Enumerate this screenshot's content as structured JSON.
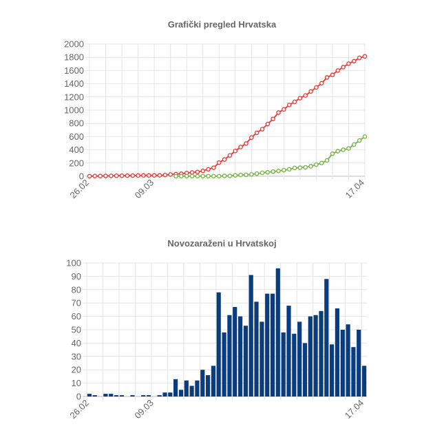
{
  "colors": {
    "confirmed": "#e8413d",
    "recovered": "#7ab648",
    "bars": "#0b3d7c",
    "grid": "#e4e4e4",
    "text": "#666666"
  },
  "chart_data": [
    {
      "type": "line",
      "title": "Grafički pregled Hrvatska",
      "xlabel": "",
      "ylabel": "",
      "ylim": [
        0,
        2000
      ],
      "yticks": [
        "0",
        "200",
        "400",
        "600",
        "800",
        "1000",
        "1200",
        "1400",
        "1600",
        "1800",
        "2000"
      ],
      "x_start": "26.02",
      "x_end": "17.04",
      "x_tick_labels": [
        "26.02",
        "09.03",
        "17.04"
      ],
      "grid": true,
      "legend": "none",
      "series": [
        {
          "color": "#e8413d",
          "values": [
            1,
            3,
            3,
            5,
            6,
            7,
            7,
            9,
            10,
            11,
            12,
            12,
            13,
            14,
            19,
            27,
            32,
            38,
            49,
            57,
            65,
            81,
            105,
            128,
            206,
            254,
            315,
            382,
            442,
            495,
            586,
            657,
            713,
            790,
            867,
            963,
            1011,
            1079,
            1126,
            1182,
            1222,
            1282,
            1343,
            1407,
            1495,
            1534,
            1600,
            1650,
            1704,
            1741,
            1791,
            1814
          ]
        },
        {
          "color": "#7ab648",
          "values": [
            null,
            null,
            null,
            null,
            null,
            null,
            null,
            null,
            null,
            null,
            null,
            null,
            null,
            null,
            null,
            null,
            0,
            1,
            1,
            1,
            1,
            1,
            1,
            1,
            1,
            5,
            5,
            14,
            20,
            22,
            28,
            40,
            52,
            60,
            70,
            80,
            92,
            105,
            125,
            130,
            135,
            150,
            175,
            200,
            240,
            340,
            380,
            400,
            420,
            480,
            540,
            600
          ]
        }
      ]
    },
    {
      "type": "bar",
      "title": "Novozaraženi u Hrvatskoj",
      "xlabel": "",
      "ylabel": "",
      "ylim": [
        0,
        100
      ],
      "yticks": [
        "0",
        "10",
        "20",
        "30",
        "40",
        "50",
        "60",
        "70",
        "80",
        "90",
        "100"
      ],
      "x_start": "26.02",
      "x_end": "17.04",
      "x_tick_labels": [
        "26.02",
        "09.03",
        "17.04"
      ],
      "grid": true,
      "legend": "none",
      "values": [
        2,
        1,
        0,
        2,
        2,
        1,
        1,
        0,
        1,
        0,
        1,
        1,
        0,
        1,
        3,
        3,
        13,
        5,
        12,
        8,
        12,
        20,
        16,
        23,
        78,
        48,
        61,
        67,
        60,
        53,
        91,
        71,
        56,
        77,
        77,
        96,
        48,
        68,
        47,
        56,
        40,
        60,
        61,
        64,
        88,
        39,
        66,
        50,
        54,
        37,
        50,
        23
      ]
    }
  ]
}
